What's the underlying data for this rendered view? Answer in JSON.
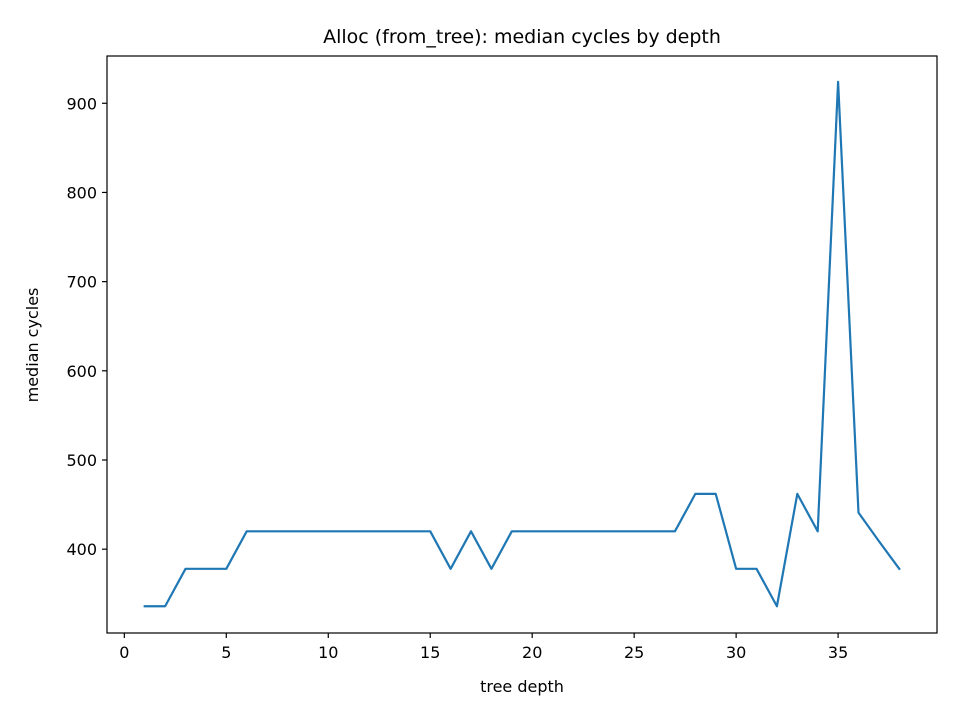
{
  "chart_data": {
    "type": "line",
    "title": "Alloc (from_tree): median cycles by depth",
    "xlabel": "tree depth",
    "ylabel": "median cycles",
    "xlim": [
      -0.85,
      39.85
    ],
    "ylim": [
      306,
      953
    ],
    "x_ticks": [
      0,
      5,
      10,
      15,
      20,
      25,
      30,
      35
    ],
    "y_ticks": [
      400,
      500,
      600,
      700,
      800,
      900
    ],
    "grid": false,
    "legend": "none",
    "series": [
      {
        "color": "#1f77b4",
        "x": [
          1,
          2,
          3,
          4,
          5,
          6,
          7,
          8,
          9,
          10,
          11,
          12,
          13,
          14,
          15,
          16,
          17,
          18,
          19,
          20,
          21,
          22,
          23,
          24,
          25,
          26,
          27,
          28,
          29,
          30,
          31,
          32,
          33,
          34,
          35,
          36,
          37,
          38
        ],
        "values": [
          336,
          336,
          378,
          378,
          378,
          420,
          420,
          420,
          420,
          420,
          420,
          420,
          420,
          420,
          420,
          378,
          420,
          378,
          420,
          420,
          420,
          420,
          420,
          420,
          420,
          420,
          420,
          462,
          462,
          378,
          378,
          336,
          462,
          420,
          924,
          441,
          409,
          378
        ]
      }
    ]
  }
}
